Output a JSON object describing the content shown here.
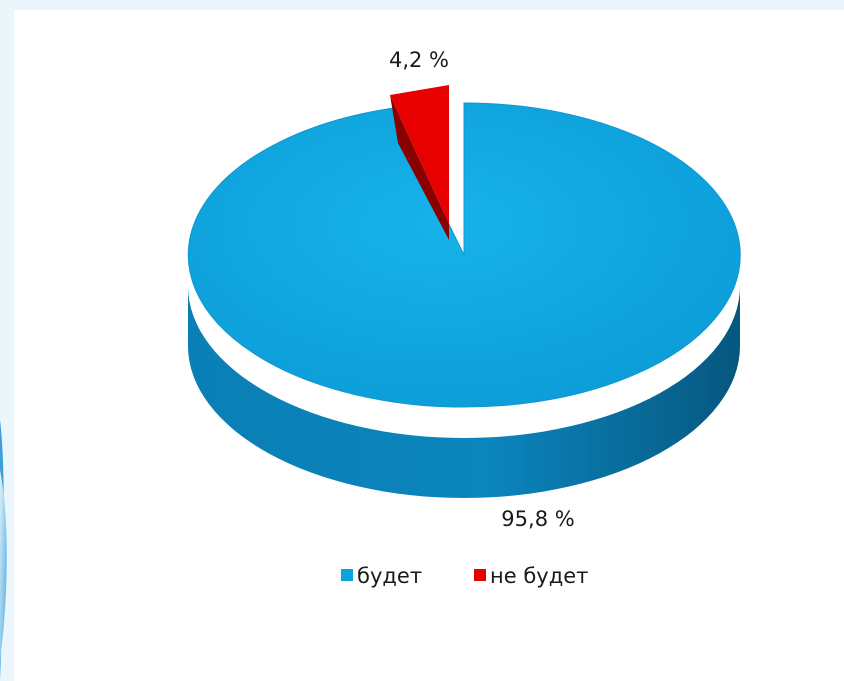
{
  "chart_data": {
    "type": "pie",
    "style": "3d-exploded",
    "slices": [
      {
        "label": "будет",
        "value": 95.8,
        "data_label": "95,8 %",
        "color": "#0ea3dc"
      },
      {
        "label": "не будет",
        "value": 4.2,
        "data_label": "4,2 %",
        "color": "#e60000"
      }
    ],
    "legend": {
      "position": "bottom",
      "entries": [
        "будет",
        "не будет"
      ]
    }
  },
  "colors": {
    "background_accent": "#5fb8e8",
    "slice_1_dark": "#07608a",
    "slice_2_dark": "#8a0000"
  }
}
